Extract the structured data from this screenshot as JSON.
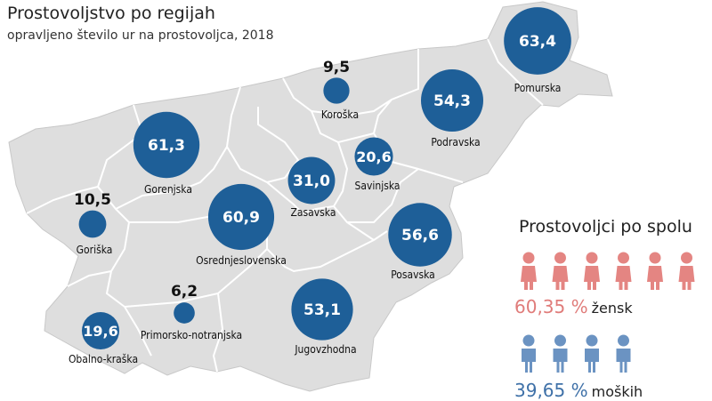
{
  "header": {
    "title": "Prostovoljstvo po regijah",
    "subtitle": "opravljeno število ur na prostovoljca, 2018"
  },
  "colors": {
    "bubble": "#1e5f98",
    "map_fill": "#dedede",
    "map_border": "#ffffff",
    "female": "#e48582",
    "male": "#6b93c2"
  },
  "regions": [
    {
      "name": "Pomurska",
      "value": "63,4",
      "label_outside": false
    },
    {
      "name": "Podravska",
      "value": "54,3",
      "label_outside": false
    },
    {
      "name": "Koroška",
      "value": "9,5",
      "label_outside": true
    },
    {
      "name": "Savinjska",
      "value": "20,6",
      "label_outside": false
    },
    {
      "name": "Zasavska",
      "value": "31,0",
      "label_outside": false
    },
    {
      "name": "Posavska",
      "value": "56,6",
      "label_outside": false
    },
    {
      "name": "Jugovzhodna",
      "value": "53,1",
      "label_outside": false
    },
    {
      "name": "Osrednjeslovenska",
      "value": "60,9",
      "label_outside": false
    },
    {
      "name": "Gorenjska",
      "value": "61,3",
      "label_outside": false
    },
    {
      "name": "Goriška",
      "value": "10,5",
      "label_outside": true
    },
    {
      "name": "Primorsko-notranjska",
      "value": "6,2",
      "label_outside": true
    },
    {
      "name": "Obalno-kraška",
      "value": "19,6",
      "label_outside": false
    }
  ],
  "gender": {
    "title": "Prostovoljci po spolu",
    "female_pct": "60,35 %",
    "female_word": "žensk",
    "female_icons": 6,
    "male_pct": "39,65 %",
    "male_word": "moških",
    "male_icons": 4
  }
}
